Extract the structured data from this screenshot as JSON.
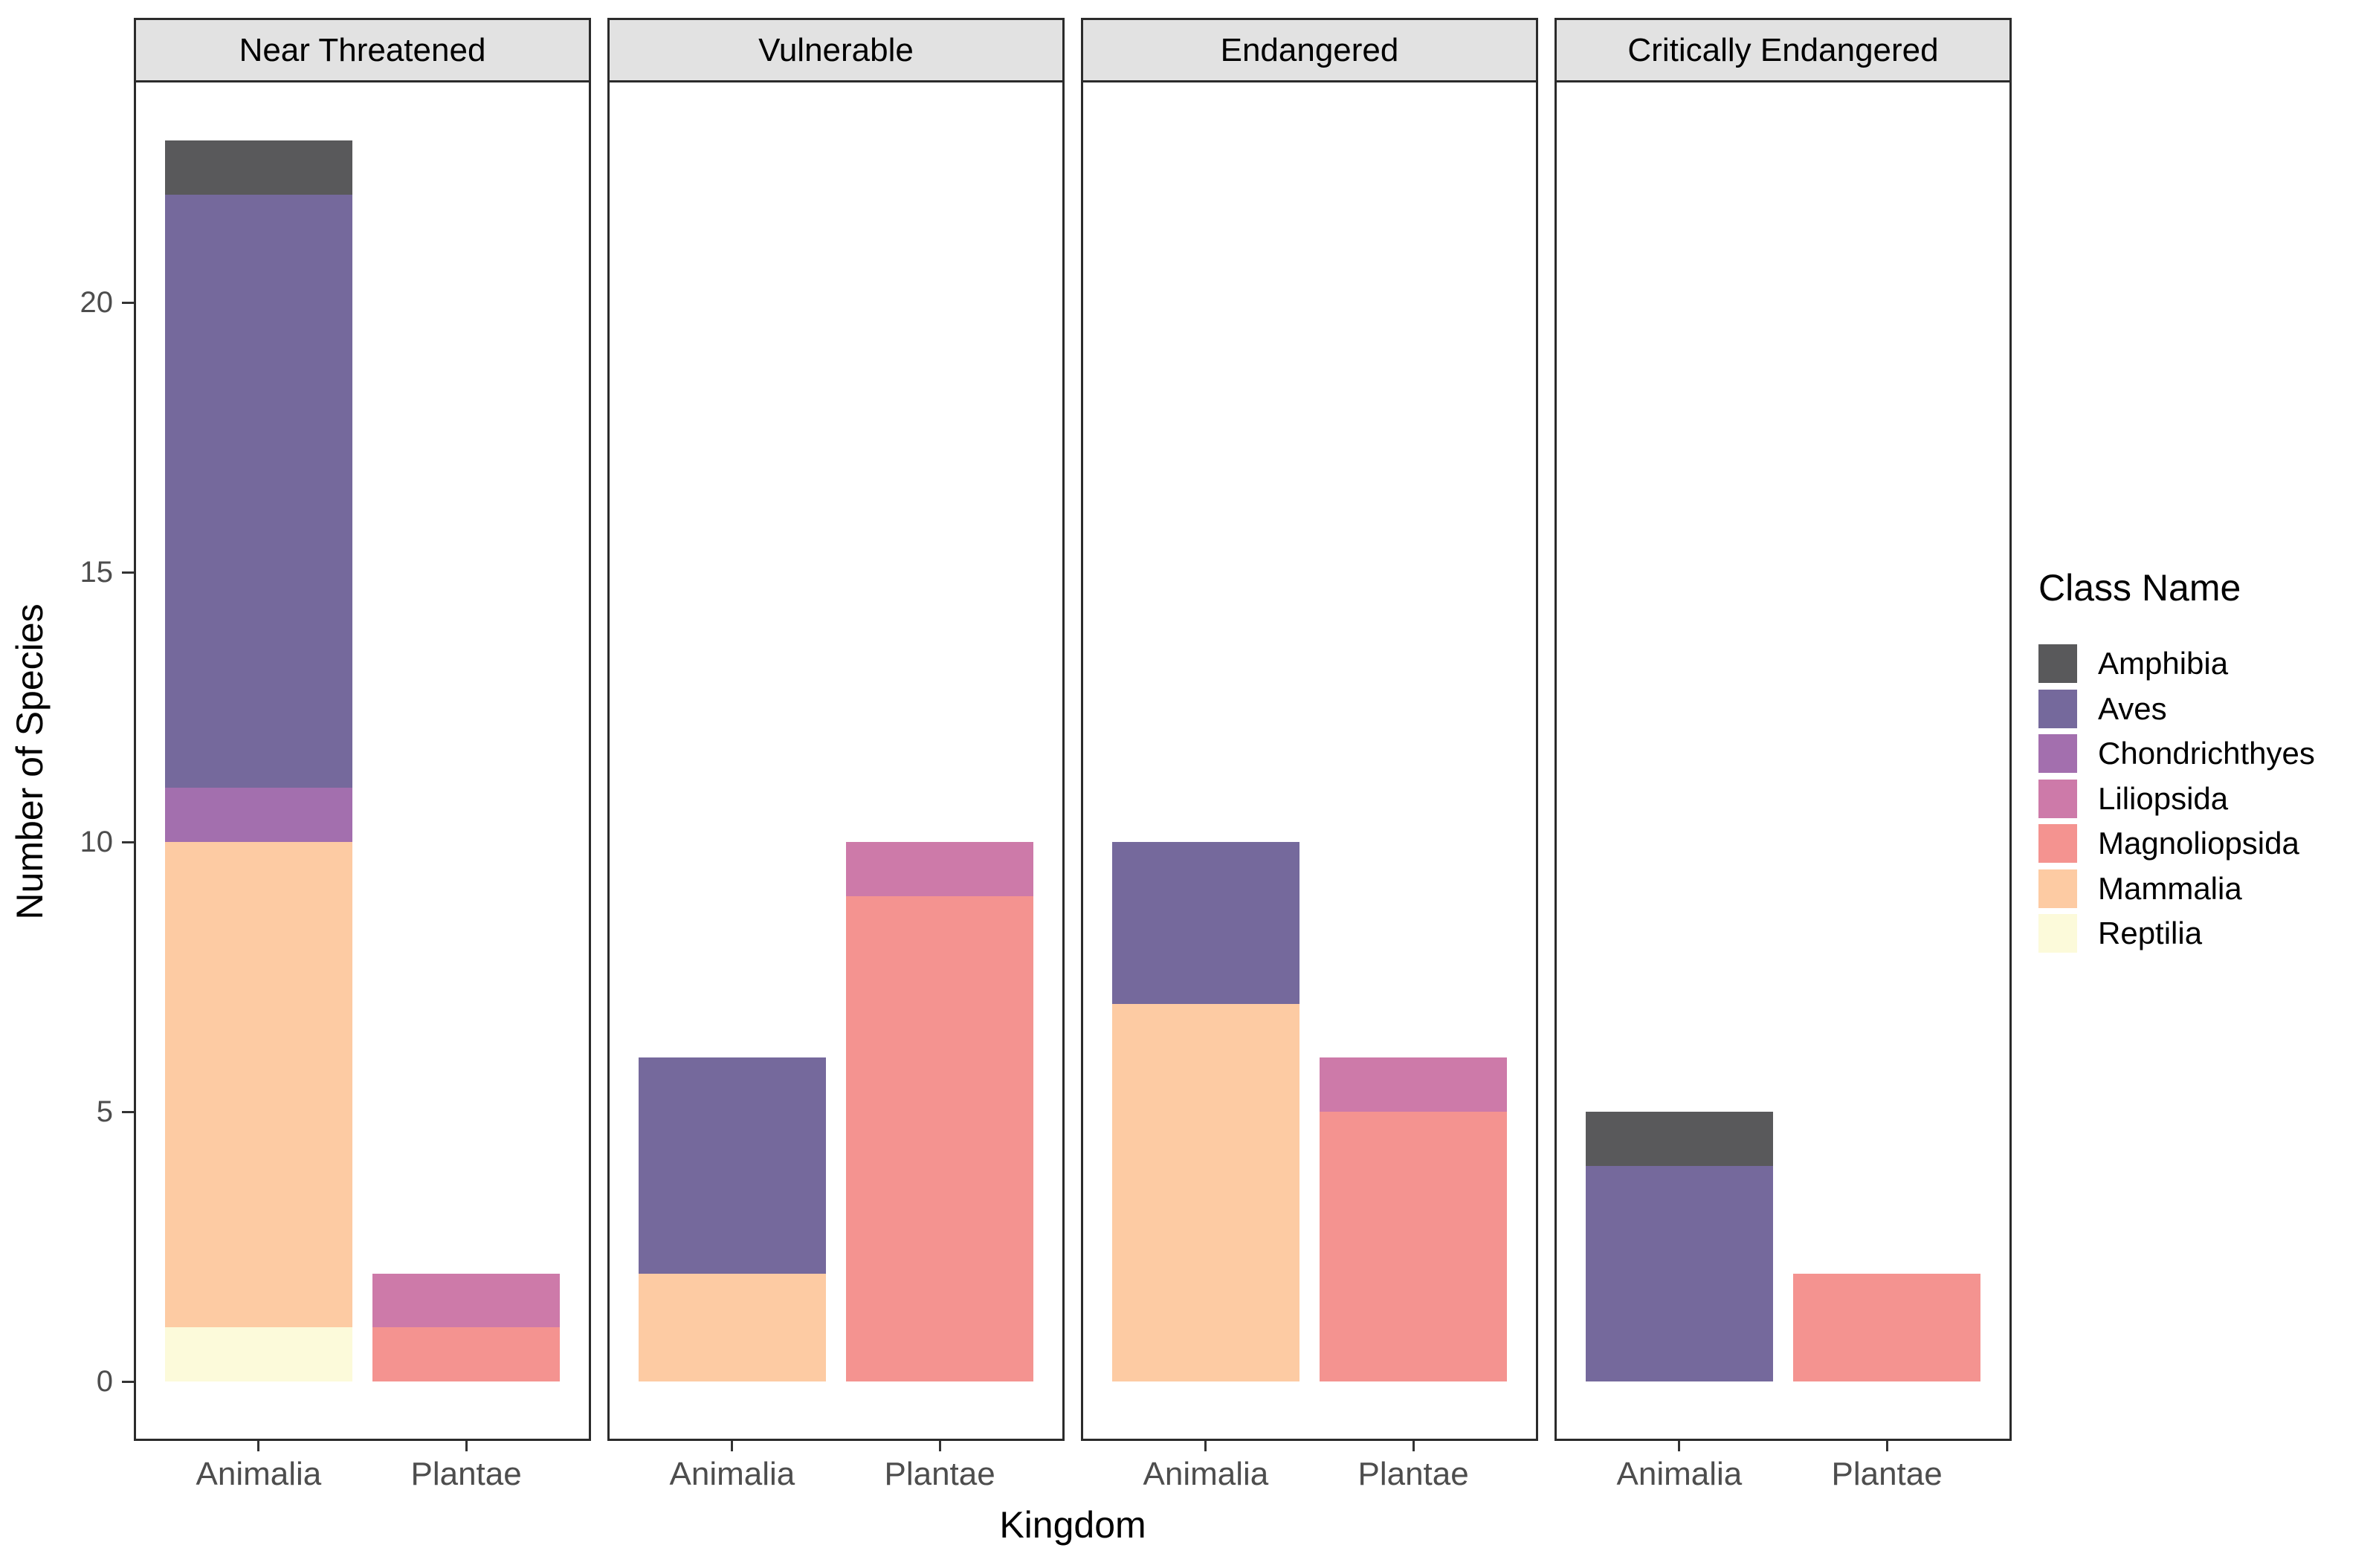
{
  "chart_data": {
    "type": "bar",
    "subtype": "stacked-vertical-faceted",
    "title": "",
    "grid": false,
    "y_axis": {
      "label": "Number of Species",
      "ticks": [
        0,
        5,
        10,
        15,
        20
      ],
      "range_shown": [
        0,
        23
      ]
    },
    "x_axis": {
      "label": "Kingdom",
      "categories": [
        "Animalia",
        "Plantae"
      ]
    },
    "facets": [
      {
        "label": "Near Threatened",
        "bars": [
          {
            "category": "Animalia",
            "total": 23,
            "segments": [
              {
                "class": "Reptilia",
                "value": 1
              },
              {
                "class": "Mammalia",
                "value": 9
              },
              {
                "class": "Chondrichthyes",
                "value": 1
              },
              {
                "class": "Aves",
                "value": 11
              },
              {
                "class": "Amphibia",
                "value": 1
              }
            ]
          },
          {
            "category": "Plantae",
            "total": 2,
            "segments": [
              {
                "class": "Magnoliopsida",
                "value": 1
              },
              {
                "class": "Liliopsida",
                "value": 1
              }
            ]
          }
        ]
      },
      {
        "label": "Vulnerable",
        "bars": [
          {
            "category": "Animalia",
            "total": 6,
            "segments": [
              {
                "class": "Mammalia",
                "value": 2
              },
              {
                "class": "Aves",
                "value": 4
              }
            ]
          },
          {
            "category": "Plantae",
            "total": 10,
            "segments": [
              {
                "class": "Magnoliopsida",
                "value": 9
              },
              {
                "class": "Liliopsida",
                "value": 1
              }
            ]
          }
        ]
      },
      {
        "label": "Endangered",
        "bars": [
          {
            "category": "Animalia",
            "total": 10,
            "segments": [
              {
                "class": "Mammalia",
                "value": 7
              },
              {
                "class": "Aves",
                "value": 3
              }
            ]
          },
          {
            "category": "Plantae",
            "total": 6,
            "segments": [
              {
                "class": "Magnoliopsida",
                "value": 5
              },
              {
                "class": "Liliopsida",
                "value": 1
              }
            ]
          }
        ]
      },
      {
        "label": "Critically Endangered",
        "bars": [
          {
            "category": "Animalia",
            "total": 5,
            "segments": [
              {
                "class": "Aves",
                "value": 4
              },
              {
                "class": "Amphibia",
                "value": 1
              }
            ]
          },
          {
            "category": "Plantae",
            "total": 2,
            "segments": [
              {
                "class": "Magnoliopsida",
                "value": 2
              }
            ]
          }
        ]
      }
    ],
    "legend": {
      "title": "Class Name",
      "position": "right",
      "entries": [
        {
          "label": "Amphibia",
          "color": "#59595B"
        },
        {
          "label": "Aves",
          "color": "#75699C"
        },
        {
          "label": "Chondrichthyes",
          "color": "#A36FAE"
        },
        {
          "label": "Liliopsida",
          "color": "#CD7AA9"
        },
        {
          "label": "Magnoliopsida",
          "color": "#F49390"
        },
        {
          "label": "Mammalia",
          "color": "#FDCBA3"
        },
        {
          "label": "Reptilia",
          "color": "#FCFADA"
        }
      ]
    },
    "colors": {
      "panel_border": "#2B2B2B",
      "strip_fill": "#E2E2E2",
      "tick_text": "#4D4D4D",
      "axis_title_text": "#000000",
      "background": "#FFFFFF"
    }
  }
}
